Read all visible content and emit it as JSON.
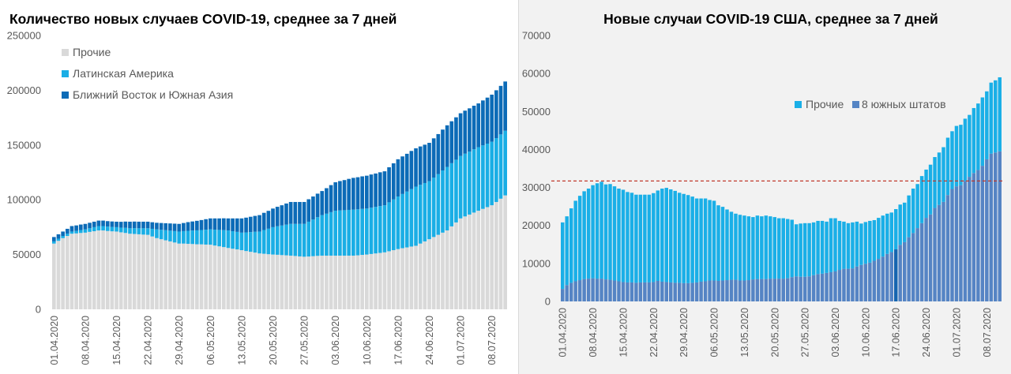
{
  "chart_data": [
    {
      "type": "bar",
      "stacked": true,
      "title": "Количество новых случаев COVID-19, среднее за 7 дней",
      "xlabel": "",
      "ylabel": "",
      "ylim": [
        0,
        250000
      ],
      "y_ticks": [
        "0",
        "50000",
        "100000",
        "150000",
        "200000",
        "250000"
      ],
      "x_tick_labels": [
        "01.04.2020",
        "08.04.2020",
        "15.04.2020",
        "22.04.2020",
        "29.04.2020",
        "06.05.2020",
        "13.05.2020",
        "20.05.2020",
        "27.05.2020",
        "03.06.2020",
        "10.06.2020",
        "17.06.2020",
        "24.06.2020",
        "01.07.2020",
        "08.07.2020"
      ],
      "x_tick_every_days": 7,
      "grid": false,
      "legend_placement": "top-left",
      "series": [
        {
          "name": "Прочие",
          "color": "#d9d9d9",
          "values": [
            60000,
            62500,
            65000,
            67000,
            69000,
            69300,
            69700,
            70000,
            70700,
            71300,
            72000,
            72000,
            71500,
            71200,
            71000,
            70300,
            69700,
            69000,
            68800,
            68500,
            68200,
            68000,
            66500,
            65000,
            64000,
            63000,
            62000,
            61000,
            60000,
            60000,
            59800,
            59600,
            59400,
            59300,
            59100,
            59000,
            58200,
            57500,
            56800,
            56000,
            55300,
            54700,
            54000,
            53200,
            52500,
            51800,
            51000,
            50700,
            50300,
            50000,
            49800,
            49500,
            49300,
            49000,
            48700,
            48300,
            48000,
            48200,
            48500,
            48800,
            49000,
            49000,
            49000,
            49000,
            49000,
            49000,
            49000,
            49000,
            49300,
            49700,
            50000,
            50500,
            51000,
            51500,
            52000,
            53000,
            54000,
            55000,
            55800,
            56500,
            57300,
            58000,
            60000,
            62000,
            64000,
            66000,
            68000,
            70000,
            72000,
            75700,
            79300,
            83000,
            84800,
            86500,
            88300,
            90000,
            91700,
            93300,
            95000,
            98000,
            101000,
            104000
          ]
        },
        {
          "name": "Латинская Америка",
          "color": "#1aaee5",
          "values": [
            2000,
            2000,
            2000,
            2000,
            2000,
            2300,
            2700,
            3000,
            3300,
            3700,
            4000,
            4000,
            4000,
            4000,
            4000,
            4300,
            4700,
            5000,
            5300,
            5500,
            5800,
            6000,
            7000,
            8000,
            8600,
            9200,
            9800,
            10400,
            11000,
            11400,
            11900,
            12300,
            12700,
            13100,
            13600,
            14000,
            14500,
            15000,
            15500,
            16000,
            16000,
            16000,
            16000,
            17000,
            18000,
            19000,
            20000,
            21700,
            23300,
            25000,
            26000,
            27000,
            28000,
            29000,
            29300,
            29700,
            30000,
            31800,
            33500,
            35300,
            37000,
            38300,
            39700,
            41000,
            41300,
            41500,
            41800,
            42000,
            42000,
            42000,
            42000,
            42300,
            42500,
            42800,
            43000,
            44700,
            46300,
            48000,
            49500,
            51000,
            52500,
            54000,
            53700,
            53300,
            53000,
            54300,
            55500,
            56800,
            58000,
            57700,
            57300,
            57000,
            57300,
            57500,
            57800,
            58000,
            58000,
            58000,
            58000,
            58300,
            58700,
            59000
          ]
        },
        {
          "name": "Ближний Восток и Южная Азия",
          "color": "#0c6bb7",
          "values": [
            4000,
            4000,
            4000,
            4500,
            5000,
            5000,
            5000,
            5000,
            5000,
            5000,
            5000,
            5000,
            5000,
            5000,
            5000,
            5300,
            5700,
            6000,
            6000,
            6000,
            6000,
            6000,
            6000,
            6000,
            6200,
            6400,
            6600,
            6800,
            7000,
            7400,
            7900,
            8300,
            8700,
            9100,
            9600,
            10000,
            10300,
            10500,
            10800,
            11000,
            11700,
            12300,
            13000,
            13500,
            14000,
            14500,
            15000,
            15700,
            16300,
            17000,
            17800,
            18500,
            19300,
            20000,
            20000,
            20000,
            20000,
            20500,
            21000,
            21500,
            22000,
            23300,
            24700,
            26000,
            26800,
            27500,
            28300,
            29000,
            29300,
            29700,
            30000,
            30300,
            30500,
            30800,
            31000,
            32000,
            33000,
            34000,
            34300,
            34500,
            34800,
            35000,
            35000,
            35000,
            35000,
            35800,
            36500,
            37300,
            38000,
            38300,
            38700,
            39000,
            39300,
            39500,
            39800,
            40000,
            41000,
            42000,
            43000,
            43700,
            44300,
            45000
          ]
        }
      ]
    },
    {
      "type": "bar",
      "stacked": true,
      "title": "Новые случаи COVID-19  США, среднее за 7 дней",
      "xlabel": "",
      "ylabel": "",
      "ylim": [
        0,
        70000
      ],
      "y_ticks": [
        "0",
        "10000",
        "20000",
        "30000",
        "40000",
        "50000",
        "60000",
        "70000"
      ],
      "x_tick_labels": [
        "01.04.2020",
        "08.04.2020",
        "15.04.2020",
        "22.04.2020",
        "29.04.2020",
        "06.05.2020",
        "13.05.2020",
        "20.05.2020",
        "27.05.2020",
        "03.06.2020",
        "10.06.2020",
        "17.06.2020",
        "24.06.2020",
        "01.07.2020",
        "08.07.2020"
      ],
      "x_tick_every_days": 7,
      "grid": false,
      "legend_placement": "top-right",
      "reference_line": {
        "y": 31700,
        "style": "dashed",
        "color": "#c0392b"
      },
      "highlight": {
        "date": "17.06.2020",
        "series": "8 южных штатов",
        "color": "#1565b0"
      },
      "series": [
        {
          "name": "8 южных штатов",
          "color": "#5584c4",
          "values": [
            3300,
            4300,
            4900,
            5300,
            5600,
            5900,
            6000,
            6100,
            6000,
            6000,
            5800,
            5700,
            5500,
            5300,
            5100,
            5000,
            5000,
            4900,
            5000,
            5000,
            5000,
            5100,
            5400,
            5200,
            5100,
            5000,
            4900,
            4900,
            4800,
            4800,
            4900,
            5000,
            5200,
            5300,
            5500,
            5500,
            5400,
            5500,
            5600,
            5700,
            5700,
            5500,
            5500,
            5600,
            5800,
            5900,
            5900,
            5900,
            6000,
            6000,
            6000,
            6000,
            6100,
            6400,
            6600,
            6500,
            6500,
            6600,
            6900,
            7200,
            7300,
            7500,
            7700,
            7900,
            8300,
            8600,
            8600,
            8700,
            9200,
            9600,
            9900,
            10200,
            10700,
            11200,
            11800,
            12500,
            13000,
            13700,
            14900,
            15600,
            16900,
            18000,
            19300,
            20600,
            22000,
            22900,
            24600,
            25400,
            26200,
            28000,
            29600,
            30300,
            30600,
            31700,
            32800,
            33800,
            34600,
            35700,
            37400,
            38900,
            39200,
            39500
          ]
        },
        {
          "name": "Прочие",
          "color": "#1aafe7",
          "values": [
            17500,
            18100,
            19600,
            21200,
            22200,
            23100,
            23700,
            24500,
            25100,
            25500,
            25000,
            25200,
            24800,
            24400,
            24300,
            23800,
            23600,
            23200,
            23100,
            23100,
            23100,
            23400,
            23800,
            24500,
            24800,
            24500,
            24200,
            23700,
            23500,
            23200,
            22700,
            22100,
            21900,
            21800,
            21200,
            21000,
            19900,
            19400,
            18600,
            17900,
            17400,
            17300,
            17100,
            16800,
            16400,
            16700,
            16500,
            16700,
            16400,
            16200,
            15900,
            15900,
            15600,
            15100,
            13700,
            14000,
            14100,
            14000,
            13900,
            14000,
            13900,
            13500,
            14200,
            14000,
            12900,
            12400,
            12000,
            12100,
            11800,
            10900,
            11000,
            11000,
            10700,
            10800,
            10800,
            10600,
            10400,
            10600,
            10600,
            10400,
            11000,
            11700,
            11600,
            12400,
            12700,
            13100,
            13400,
            13800,
            14400,
            15100,
            15200,
            15900,
            15900,
            16400,
            16300,
            17100,
            17500,
            18000,
            17900,
            18700,
            19000,
            19500
          ]
        }
      ]
    }
  ]
}
